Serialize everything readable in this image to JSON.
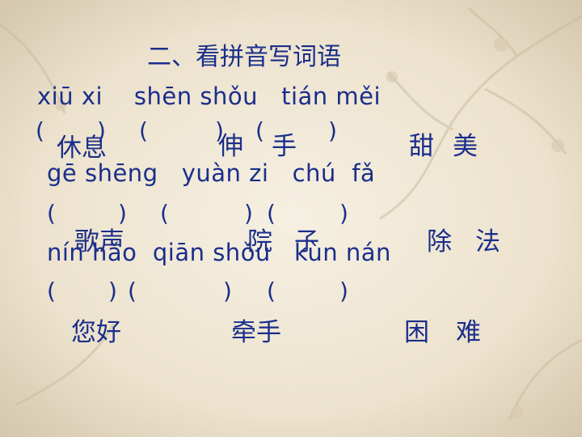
{
  "title": "二、看拼音写词语",
  "rows": [
    {
      "pinyin": "xiū xi    shēn shǒu   tián měi",
      "parens": [
        "(",
        ")",
        "(",
        ")",
        "(",
        ")"
      ],
      "answers": [
        "休息",
        "伸",
        "手",
        "甜",
        "美"
      ]
    },
    {
      "pinyin": "gē shēng   yuàn zi   chú  fǎ",
      "parens": [
        "(",
        ")",
        "(",
        ")",
        "(",
        ")"
      ],
      "answers": [
        "歌声",
        "院",
        "子",
        "除",
        "法"
      ]
    },
    {
      "pinyin": "nín hǎo  qiān shǒu   kùn nán",
      "parens": [
        "(",
        ")",
        "(",
        ")",
        "(",
        ")"
      ],
      "answers": [
        "您好",
        "牵手",
        "困",
        "难"
      ]
    }
  ],
  "colors": {
    "text": "#1a2e8a",
    "background": "#efe6d2",
    "vignette": "#cfc2a6",
    "branch": "#c9bca0"
  }
}
